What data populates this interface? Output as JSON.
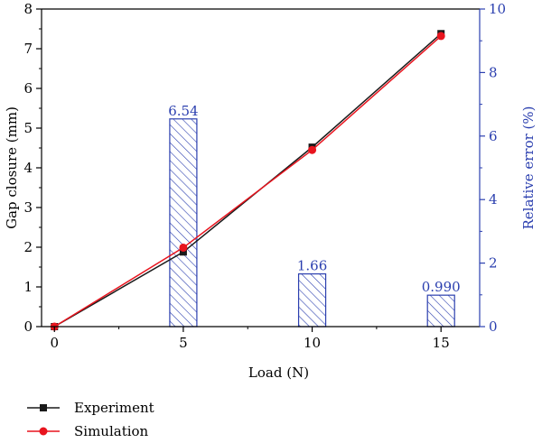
{
  "chart_data": {
    "type": "line",
    "x": [
      0,
      5,
      10,
      15
    ],
    "xlabel": "Load (N)",
    "xlim": [
      -0.5,
      16.5
    ],
    "xticks": [
      0,
      5,
      10,
      15
    ],
    "ylabel_left": "Gap closure (mm)",
    "ylim_left": [
      0,
      8
    ],
    "yticks_left": [
      0,
      1,
      2,
      3,
      4,
      5,
      6,
      7,
      8
    ],
    "ylabel_right": "Relative error (%)",
    "ylim_right": [
      0,
      10
    ],
    "yticks_right": [
      0,
      2,
      4,
      6,
      8,
      10
    ],
    "series": [
      {
        "name": "Experiment",
        "axis": "left",
        "color": "#1a1a1a",
        "marker": "square",
        "values": [
          0,
          1.88,
          4.52,
          7.38
        ]
      },
      {
        "name": "Simulation",
        "axis": "left",
        "color": "#e8141e",
        "marker": "circle",
        "values": [
          0,
          1.99,
          4.45,
          7.32
        ]
      }
    ],
    "bars": {
      "axis": "right",
      "color": "#2b3faf",
      "pattern": "diagonal-hatch",
      "x": [
        5,
        10,
        15
      ],
      "values": [
        6.54,
        1.66,
        0.99
      ],
      "labels": [
        "6.54",
        "1.66",
        "0.990"
      ]
    },
    "legend_position": "bottom-left",
    "grid": false
  }
}
